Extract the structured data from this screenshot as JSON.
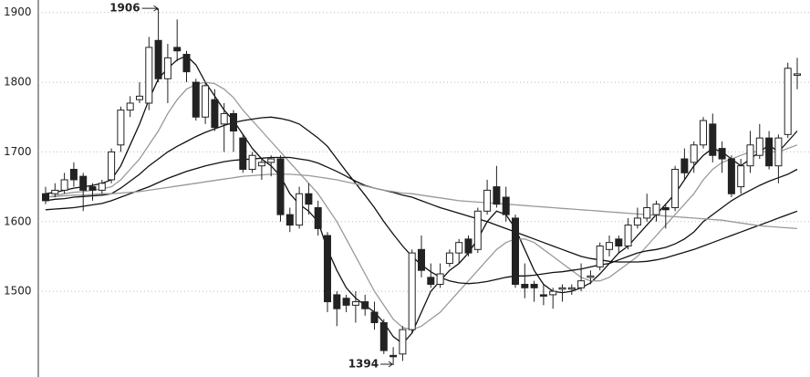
{
  "chart_data": {
    "type": "candlestick",
    "ylim": [
      1377,
      1918
    ],
    "yticks": [
      1500,
      1600,
      1700,
      1800,
      1900
    ],
    "grid": true,
    "up_color": "#ffffff",
    "down_color": "#222222",
    "open": [
      1640,
      1640,
      1645,
      1675,
      1665,
      1650,
      1645,
      1660,
      1710,
      1760,
      1775,
      1770,
      1860,
      1805,
      1850,
      1840,
      1800,
      1750,
      1775,
      1740,
      1755,
      1720,
      1675,
      1680,
      1685,
      1690,
      1610,
      1595,
      1640,
      1620,
      1580,
      1495,
      1490,
      1480,
      1485,
      1470,
      1455,
      1408,
      1410,
      1445,
      1560,
      1520,
      1510,
      1540,
      1555,
      1575,
      1560,
      1615,
      1650,
      1635,
      1605,
      1510,
      1510,
      1495,
      1495,
      1503,
      1503,
      1505,
      1520,
      1535,
      1560,
      1575,
      1565,
      1595,
      1605,
      1610,
      1620,
      1620,
      1690,
      1685,
      1710,
      1740,
      1705,
      1690,
      1650,
      1680,
      1695,
      1720,
      1680,
      1725,
      1810
    ],
    "high": [
      1650,
      1655,
      1670,
      1685,
      1670,
      1655,
      1660,
      1705,
      1765,
      1780,
      1800,
      1865,
      1906,
      1855,
      1890,
      1845,
      1805,
      1800,
      1790,
      1770,
      1760,
      1725,
      1700,
      1690,
      1695,
      1695,
      1620,
      1650,
      1655,
      1630,
      1585,
      1500,
      1495,
      1500,
      1495,
      1485,
      1460,
      1420,
      1450,
      1560,
      1580,
      1540,
      1540,
      1560,
      1575,
      1580,
      1620,
      1660,
      1680,
      1650,
      1610,
      1540,
      1515,
      1510,
      1505,
      1510,
      1510,
      1540,
      1530,
      1570,
      1580,
      1580,
      1605,
      1620,
      1640,
      1630,
      1625,
      1680,
      1705,
      1715,
      1750,
      1755,
      1715,
      1695,
      1690,
      1730,
      1740,
      1730,
      1725,
      1828,
      1835
    ],
    "low": [
      1625,
      1635,
      1640,
      1650,
      1615,
      1630,
      1640,
      1655,
      1700,
      1750,
      1770,
      1760,
      1800,
      1770,
      1830,
      1800,
      1745,
      1740,
      1730,
      1700,
      1700,
      1670,
      1670,
      1660,
      1665,
      1600,
      1585,
      1590,
      1610,
      1580,
      1470,
      1450,
      1470,
      1455,
      1465,
      1445,
      1410,
      1394,
      1400,
      1440,
      1520,
      1505,
      1505,
      1535,
      1540,
      1550,
      1555,
      1610,
      1620,
      1600,
      1505,
      1490,
      1485,
      1480,
      1475,
      1485,
      1495,
      1500,
      1510,
      1530,
      1550,
      1555,
      1560,
      1590,
      1600,
      1600,
      1590,
      1615,
      1660,
      1670,
      1705,
      1685,
      1670,
      1635,
      1640,
      1670,
      1690,
      1675,
      1655,
      1720,
      1790
    ],
    "close": [
      1630,
      1645,
      1660,
      1660,
      1645,
      1645,
      1655,
      1700,
      1760,
      1770,
      1780,
      1850,
      1805,
      1835,
      1845,
      1815,
      1750,
      1795,
      1735,
      1755,
      1730,
      1675,
      1695,
      1685,
      1690,
      1610,
      1595,
      1640,
      1625,
      1590,
      1485,
      1475,
      1480,
      1485,
      1475,
      1455,
      1415,
      1407,
      1445,
      1555,
      1530,
      1510,
      1525,
      1555,
      1570,
      1555,
      1615,
      1645,
      1625,
      1610,
      1510,
      1505,
      1505,
      1493,
      1500,
      1505,
      1505,
      1515,
      1522,
      1565,
      1570,
      1565,
      1595,
      1605,
      1620,
      1625,
      1617,
      1675,
      1670,
      1710,
      1745,
      1695,
      1690,
      1640,
      1680,
      1710,
      1720,
      1680,
      1720,
      1820,
      1812
    ],
    "series": [
      {
        "color": "#111111",
        "values": [
          1640,
          1642,
          1645,
          1648,
          1650,
          1652,
          1655,
          1660,
          1680,
          1710,
          1740,
          1775,
          1805,
          1820,
          1832,
          1838,
          1825,
          1800,
          1780,
          1760,
          1745,
          1725,
          1705,
          1690,
          1680,
          1665,
          1640,
          1625,
          1615,
          1600,
          1560,
          1530,
          1505,
          1490,
          1480,
          1470,
          1455,
          1435,
          1425,
          1440,
          1470,
          1500,
          1515,
          1530,
          1540,
          1555,
          1575,
          1600,
          1615,
          1610,
          1590,
          1560,
          1530,
          1510,
          1500,
          1498,
          1500,
          1505,
          1512,
          1525,
          1540,
          1555,
          1565,
          1580,
          1595,
          1610,
          1625,
          1640,
          1660,
          1680,
          1695,
          1705,
          1700,
          1690,
          1680,
          1690,
          1700,
          1710,
          1700,
          1715,
          1730
        ]
      },
      {
        "color": "#999999",
        "values": [
          1635,
          1637,
          1640,
          1642,
          1643,
          1645,
          1647,
          1650,
          1660,
          1675,
          1690,
          1710,
          1730,
          1755,
          1775,
          1790,
          1797,
          1800,
          1798,
          1790,
          1778,
          1760,
          1745,
          1730,
          1715,
          1700,
          1685,
          1670,
          1655,
          1640,
          1620,
          1600,
          1575,
          1550,
          1525,
          1500,
          1480,
          1460,
          1448,
          1445,
          1450,
          1460,
          1470,
          1485,
          1500,
          1515,
          1530,
          1545,
          1560,
          1570,
          1575,
          1575,
          1570,
          1560,
          1550,
          1540,
          1530,
          1520,
          1515,
          1515,
          1520,
          1530,
          1540,
          1550,
          1565,
          1580,
          1595,
          1610,
          1625,
          1640,
          1660,
          1675,
          1685,
          1690,
          1695,
          1700,
          1700,
          1700,
          1700,
          1705,
          1710
        ]
      },
      {
        "color": "#111111",
        "values": [
          1630,
          1632,
          1633,
          1635,
          1636,
          1637,
          1638,
          1640,
          1648,
          1658,
          1668,
          1680,
          1690,
          1700,
          1708,
          1715,
          1722,
          1728,
          1733,
          1738,
          1742,
          1745,
          1747,
          1749,
          1750,
          1748,
          1745,
          1740,
          1730,
          1720,
          1708,
          1690,
          1672,
          1655,
          1638,
          1620,
          1600,
          1582,
          1565,
          1550,
          1538,
          1528,
          1520,
          1515,
          1512,
          1511,
          1512,
          1514,
          1517,
          1520,
          1522,
          1522,
          1523,
          1525,
          1527,
          1528,
          1530,
          1532,
          1535,
          1538,
          1540,
          1545,
          1550,
          1555,
          1558,
          1560,
          1563,
          1568,
          1575,
          1585,
          1600,
          1610,
          1620,
          1630,
          1638,
          1645,
          1652,
          1658,
          1663,
          1668,
          1675
        ]
      },
      {
        "color": "#111111",
        "values": [
          1617,
          1618,
          1619,
          1620,
          1622,
          1624,
          1626,
          1630,
          1635,
          1640,
          1645,
          1650,
          1656,
          1662,
          1667,
          1672,
          1676,
          1680,
          1683,
          1686,
          1688,
          1689,
          1690,
          1691,
          1692,
          1692,
          1692,
          1690,
          1688,
          1684,
          1678,
          1672,
          1665,
          1658,
          1652,
          1648,
          1645,
          1642,
          1638,
          1635,
          1630,
          1625,
          1620,
          1616,
          1612,
          1608,
          1604,
          1600,
          1595,
          1590,
          1585,
          1580,
          1575,
          1570,
          1565,
          1560,
          1555,
          1550,
          1547,
          1545,
          1543,
          1542,
          1542,
          1542,
          1543,
          1545,
          1548,
          1552,
          1556,
          1560,
          1565,
          1570,
          1575,
          1580,
          1585,
          1590,
          1595,
          1600,
          1605,
          1610,
          1615
        ]
      },
      {
        "color": "#999999",
        "values": [
          1635,
          1636,
          1637,
          1638,
          1638,
          1639,
          1640,
          1640,
          1641,
          1642,
          1643,
          1645,
          1647,
          1649,
          1651,
          1653,
          1655,
          1657,
          1659,
          1661,
          1663,
          1665,
          1666,
          1667,
          1668,
          1668,
          1668,
          1667,
          1666,
          1664,
          1662,
          1660,
          1657,
          1654,
          1651,
          1648,
          1645,
          1643,
          1641,
          1640,
          1638,
          1636,
          1634,
          1632,
          1630,
          1629,
          1628,
          1627,
          1626,
          1625,
          1624,
          1623,
          1622,
          1621,
          1620,
          1619,
          1618,
          1617,
          1616,
          1615,
          1614,
          1613,
          1612,
          1611,
          1610,
          1609,
          1608,
          1607,
          1606,
          1605,
          1604,
          1603,
          1602,
          1600,
          1598,
          1596,
          1594,
          1593,
          1592,
          1591,
          1590
        ]
      }
    ]
  }
}
